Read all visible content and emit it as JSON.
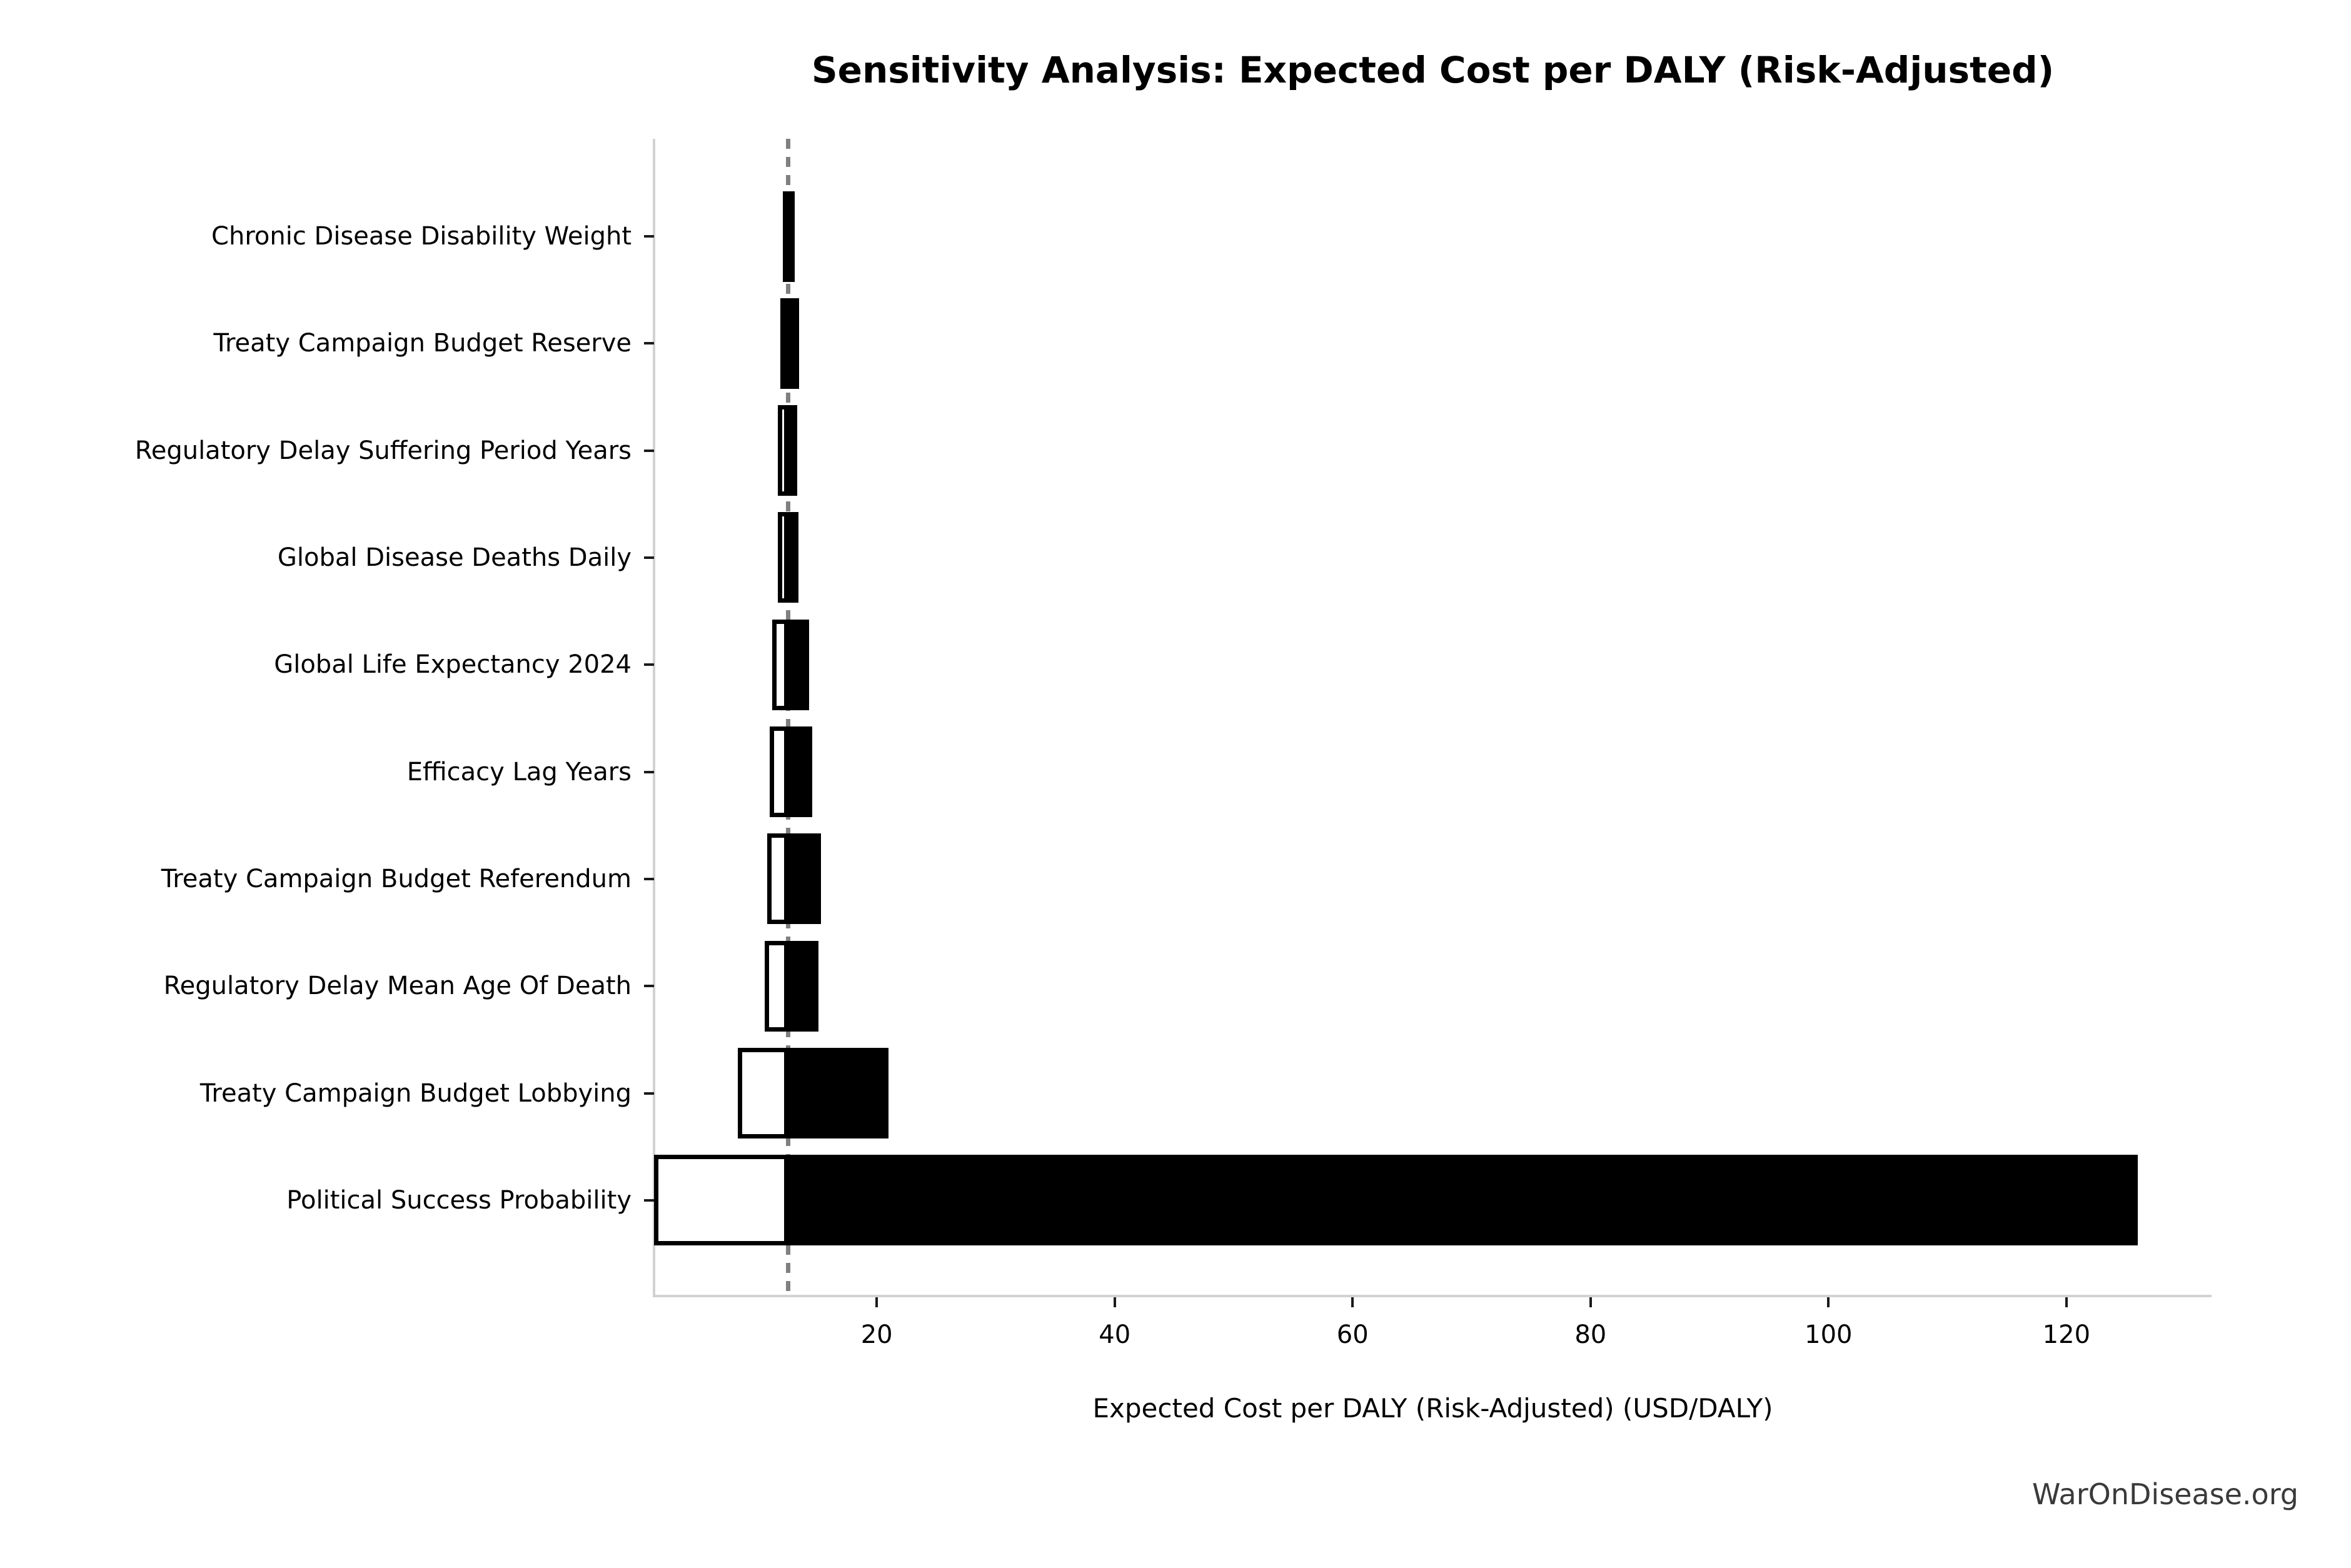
{
  "watermark": "WarOnDisease.org",
  "colors": {
    "bar_high": "#000000",
    "bar_low_fill": "#ffffff",
    "bar_edge": "#000000",
    "baseline_dash": "#808080",
    "spine": "#d2d2d2",
    "text": "#000000",
    "watermark": "#3a3a3a"
  },
  "chart_data": {
    "type": "bar",
    "subtype": "tornado",
    "orientation": "horizontal",
    "title": "Sensitivity Analysis: Expected Cost per DALY (Risk-Adjusted)",
    "xlabel": "Expected Cost per DALY (Risk-Adjusted) (USD/DALY)",
    "baseline": 12.56,
    "xlim": [
      1.28,
      132.2
    ],
    "xticks": [
      20,
      40,
      60,
      80,
      100,
      120
    ],
    "grid": false,
    "legend": false,
    "rows": [
      {
        "label": "Chronic Disease Disability Weight",
        "low": 12.1,
        "high": 13.1
      },
      {
        "label": "Treaty Campaign Budget Reserve",
        "low": 11.9,
        "high": 13.5
      },
      {
        "label": "Regulatory Delay Suffering Period Years",
        "low": 11.7,
        "high": 13.3
      },
      {
        "label": "Global Disease Deaths Daily",
        "low": 11.7,
        "high": 13.4
      },
      {
        "label": "Global Life Expectancy 2024",
        "low": 11.2,
        "high": 14.3
      },
      {
        "label": "Efficacy Lag Years",
        "low": 11.0,
        "high": 14.6
      },
      {
        "label": "Treaty Campaign Budget Referendum",
        "low": 10.8,
        "high": 15.3
      },
      {
        "label": "Regulatory Delay Mean Age Of Death",
        "low": 10.6,
        "high": 15.1
      },
      {
        "label": "Treaty Campaign Budget Lobbying",
        "low": 8.3,
        "high": 21.0
      },
      {
        "label": "Political Success Probability",
        "low": 1.3,
        "high": 126.0
      }
    ]
  }
}
